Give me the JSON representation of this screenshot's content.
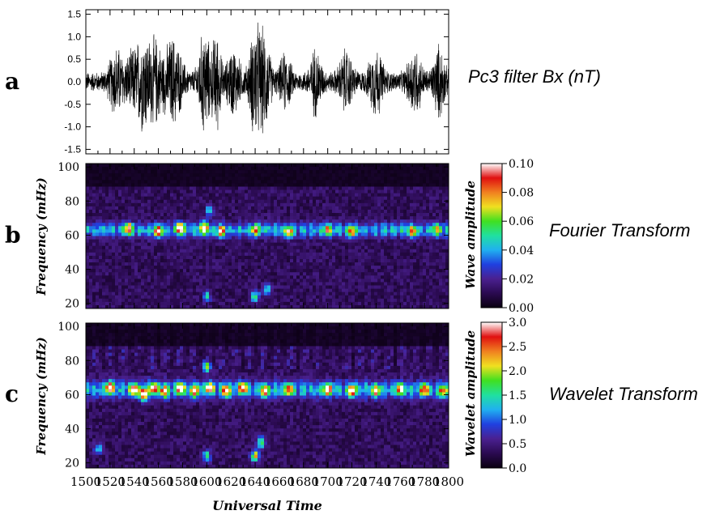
{
  "colors": {
    "trace": "#000000",
    "background": "#ffffff",
    "colormap": [
      "#0a0010",
      "#2a0a50",
      "#4a2090",
      "#2040e0",
      "#20b0f0",
      "#20e0a0",
      "#40e020",
      "#f0e020",
      "#f08020",
      "#e01010",
      "#ffffff"
    ]
  },
  "chart_data": [
    {
      "type": "line",
      "panel_letter": "a",
      "title": "Pc3 filter Bx (nT)",
      "x_range": [
        1500,
        1800
      ],
      "ylim": [
        -1.6,
        1.6
      ],
      "y_ticks": [
        "1.5",
        "1.0",
        "0.5",
        "0.0",
        "-0.5",
        "-1.0",
        "-1.5"
      ],
      "x_ticks": [],
      "xlabel": "",
      "ylabel": "",
      "noise_level": 0.2,
      "bursts": [
        {
          "t": 1525,
          "amp": 0.55,
          "width": 6
        },
        {
          "t": 1540,
          "amp": 0.5,
          "width": 8
        },
        {
          "t": 1548,
          "amp": 0.6,
          "width": 5
        },
        {
          "t": 1557,
          "amp": 0.7,
          "width": 6
        },
        {
          "t": 1572,
          "amp": 0.75,
          "width": 8
        },
        {
          "t": 1598,
          "amp": 0.95,
          "width": 5
        },
        {
          "t": 1608,
          "amp": 0.85,
          "width": 4
        },
        {
          "t": 1622,
          "amp": 0.55,
          "width": 6
        },
        {
          "t": 1640,
          "amp": 1.0,
          "width": 5
        },
        {
          "t": 1648,
          "amp": 0.8,
          "width": 5
        },
        {
          "t": 1665,
          "amp": 0.45,
          "width": 5
        },
        {
          "t": 1690,
          "amp": 0.55,
          "width": 5
        },
        {
          "t": 1715,
          "amp": 0.5,
          "width": 6
        },
        {
          "t": 1740,
          "amp": 0.55,
          "width": 6
        },
        {
          "t": 1772,
          "amp": 0.55,
          "width": 6
        },
        {
          "t": 1792,
          "amp": 0.6,
          "width": 5
        }
      ]
    },
    {
      "type": "heatmap",
      "panel_letter": "b",
      "title": "Fourier Transform",
      "x_range": [
        1500,
        1800
      ],
      "ylim": [
        17,
        102
      ],
      "ylabel": "Frequency (mHz)",
      "y_ticks": [
        "100",
        "80",
        "60",
        "40",
        "20"
      ],
      "x_ticks": [],
      "xlabel": "",
      "colorbar_label": "Wave  amplitude",
      "colorbar_range": [
        0,
        0.1
      ],
      "colorbar_ticks": [
        "0.10",
        "0.08",
        "0.06",
        "0.04",
        "0.02",
        "0.00"
      ],
      "band_center_mhz": 63,
      "band_width_mhz": 4,
      "hotspots": [
        {
          "t": 1535,
          "f": 64,
          "v": 0.07
        },
        {
          "t": 1560,
          "f": 62,
          "v": 0.085
        },
        {
          "t": 1578,
          "f": 64,
          "v": 0.09
        },
        {
          "t": 1598,
          "f": 64,
          "v": 0.09
        },
        {
          "t": 1612,
          "f": 62,
          "v": 0.07
        },
        {
          "t": 1640,
          "f": 63,
          "v": 0.065
        },
        {
          "t": 1668,
          "f": 62,
          "v": 0.06
        },
        {
          "t": 1700,
          "f": 63,
          "v": 0.06
        },
        {
          "t": 1720,
          "f": 62,
          "v": 0.06
        },
        {
          "t": 1770,
          "f": 62,
          "v": 0.06
        },
        {
          "t": 1790,
          "f": 63,
          "v": 0.05
        },
        {
          "t": 1602,
          "f": 74,
          "v": 0.04
        },
        {
          "t": 1640,
          "f": 24,
          "v": 0.06
        },
        {
          "t": 1650,
          "f": 28,
          "v": 0.045
        },
        {
          "t": 1600,
          "f": 24,
          "v": 0.04
        }
      ]
    },
    {
      "type": "heatmap",
      "panel_letter": "c",
      "title": "Wavelet Transform",
      "x_range": [
        1500,
        1800
      ],
      "ylim": [
        17,
        102
      ],
      "ylabel": "Frequency (mHz)",
      "y_ticks": [
        "100",
        "80",
        "60",
        "40",
        "20"
      ],
      "x_ticks": [
        "1500",
        "1520",
        "1540",
        "1560",
        "1580",
        "1600",
        "1620",
        "1640",
        "1660",
        "1680",
        "1700",
        "1720",
        "1740",
        "1760",
        "1780",
        "1800"
      ],
      "xlabel": "Universal Time",
      "colorbar_label": "Wavelet  amplitude",
      "colorbar_range": [
        0,
        3
      ],
      "colorbar_ticks": [
        "3.0",
        "2.5",
        "2.0",
        "1.5",
        "1.0",
        "0.5",
        "0.0"
      ],
      "band_center_mhz": 63,
      "band_width_mhz": 5,
      "hotspots": [
        {
          "t": 1520,
          "f": 64,
          "v": 2.7
        },
        {
          "t": 1540,
          "f": 63,
          "v": 2.6
        },
        {
          "t": 1548,
          "f": 60,
          "v": 2.9
        },
        {
          "t": 1556,
          "f": 64,
          "v": 2.5
        },
        {
          "t": 1565,
          "f": 62,
          "v": 2.3
        },
        {
          "t": 1578,
          "f": 64,
          "v": 2.8
        },
        {
          "t": 1590,
          "f": 62,
          "v": 2.4
        },
        {
          "t": 1602,
          "f": 64,
          "v": 2.7
        },
        {
          "t": 1616,
          "f": 62,
          "v": 2.2
        },
        {
          "t": 1630,
          "f": 64,
          "v": 2.6
        },
        {
          "t": 1648,
          "f": 62,
          "v": 2.4
        },
        {
          "t": 1668,
          "f": 63,
          "v": 2.0
        },
        {
          "t": 1700,
          "f": 63,
          "v": 2.6
        },
        {
          "t": 1720,
          "f": 62,
          "v": 2.4
        },
        {
          "t": 1740,
          "f": 62,
          "v": 2.0
        },
        {
          "t": 1760,
          "f": 63,
          "v": 2.2
        },
        {
          "t": 1780,
          "f": 63,
          "v": 2.3
        },
        {
          "t": 1795,
          "f": 62,
          "v": 1.9
        },
        {
          "t": 1600,
          "f": 76,
          "v": 1.6
        },
        {
          "t": 1640,
          "f": 24,
          "v": 2.2
        },
        {
          "t": 1645,
          "f": 32,
          "v": 1.8
        },
        {
          "t": 1600,
          "f": 24,
          "v": 1.6
        },
        {
          "t": 1510,
          "f": 28,
          "v": 1.2
        }
      ]
    }
  ]
}
